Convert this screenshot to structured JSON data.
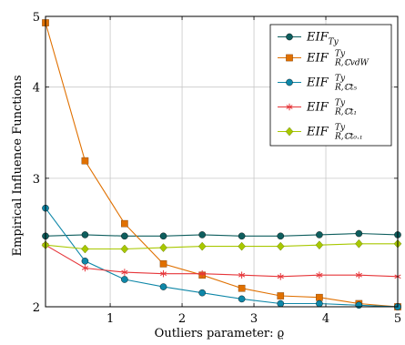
{
  "chart_data": {
    "type": "line",
    "xlabel": "Outliers parameter: ϱ",
    "ylabel": "Empirical Influence Functions",
    "xlim": [
      0.1,
      5
    ],
    "ylim": [
      2,
      5
    ],
    "y_scale": "log",
    "x_ticks": [
      1,
      2,
      3,
      4,
      5
    ],
    "y_ticks": [
      2,
      3,
      4,
      5
    ],
    "grid": true,
    "legend_position": "top-right",
    "series": [
      {
        "name": "EIF_{Ty}",
        "legend_main": "EIF",
        "legend_sub": "Ty",
        "legend_sup": "",
        "color": "#0e5e5e",
        "marker": "circle",
        "x": [
          0.1,
          0.65,
          1.2,
          1.74,
          2.28,
          2.83,
          3.37,
          3.91,
          4.46,
          5.0
        ],
        "y": [
          2.5,
          2.51,
          2.5,
          2.5,
          2.51,
          2.5,
          2.5,
          2.51,
          2.52,
          2.51
        ]
      },
      {
        "name": "EIF^{Ty}_{R,ℂvdW}",
        "legend_main": "EIF",
        "legend_sub": "R,ℂvdW",
        "legend_sup": "Ty",
        "color": "#e07000",
        "marker": "square",
        "x": [
          0.1,
          0.65,
          1.2,
          1.74,
          2.28,
          2.83,
          3.37,
          3.91,
          4.46,
          5.0
        ],
        "y": [
          4.9,
          3.17,
          2.6,
          2.29,
          2.21,
          2.12,
          2.07,
          2.06,
          2.02,
          2.0
        ]
      },
      {
        "name": "EIF^{Ty}_{R,ℂt5}",
        "legend_main": "EIF",
        "legend_sub": "R,ℂt₅",
        "legend_sup": "Ty",
        "color": "#0e87a8",
        "marker": "circle",
        "x": [
          0.1,
          0.65,
          1.2,
          1.74,
          2.28,
          2.83,
          3.37,
          3.91,
          4.46,
          5.0
        ],
        "y": [
          2.73,
          2.31,
          2.18,
          2.13,
          2.09,
          2.05,
          2.02,
          2.02,
          2.01,
          2.0
        ]
      },
      {
        "name": "EIF^{Ty}_{R,ℂt1}",
        "legend_main": "EIF",
        "legend_sub": "R,ℂt₁",
        "legend_sup": "Ty",
        "color": "#e6363a",
        "marker": "star",
        "x": [
          0.1,
          0.65,
          1.2,
          1.74,
          2.28,
          2.83,
          3.37,
          3.91,
          4.46,
          5.0
        ],
        "y": [
          2.43,
          2.26,
          2.23,
          2.22,
          2.22,
          2.21,
          2.2,
          2.21,
          2.21,
          2.2
        ]
      },
      {
        "name": "EIF^{Ty}_{R,ℂt0.1}",
        "legend_main": "EIF",
        "legend_sub": "R,ℂt₀.₁",
        "legend_sup": "Ty",
        "color": "#a8c800",
        "marker": "diamond",
        "x": [
          0.1,
          0.65,
          1.2,
          1.74,
          2.28,
          2.83,
          3.37,
          3.91,
          4.46,
          5.0
        ],
        "y": [
          2.43,
          2.4,
          2.4,
          2.41,
          2.42,
          2.42,
          2.42,
          2.43,
          2.44,
          2.44
        ]
      }
    ]
  }
}
